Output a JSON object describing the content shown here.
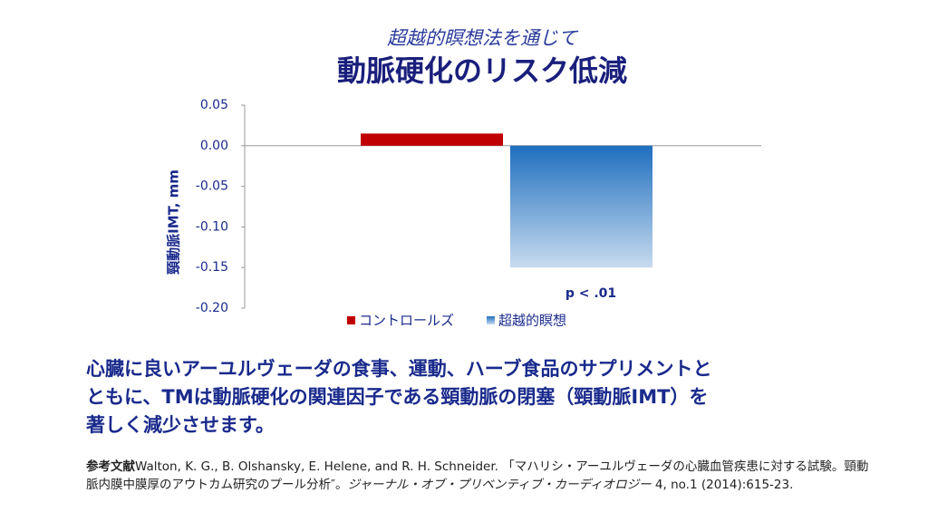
{
  "chart_data": {
    "type": "bar",
    "subtitle": "超越的瞑想法を通じて",
    "title": "動脈硬化のリスク低減",
    "y_label": "頸動脈IMT, mm",
    "categories": [
      null
    ],
    "series": [
      {
        "name": "コントロールズ",
        "color": "#c00000",
        "values": [
          0.015
        ]
      },
      {
        "name": "超越的瞑想",
        "color": "#1f6fbf",
        "values": [
          -0.15
        ]
      }
    ],
    "ylim": [
      -0.2,
      0.05
    ],
    "yticks": [
      0.05,
      {
        "value": 0,
        "label": "0.00"
      },
      -0.05,
      {
        "value": -0.1,
        "label": "-0.10"
      },
      -0.15,
      {
        "value": -0.2,
        "label": "-0.20"
      }
    ],
    "annotations": [
      "p < .01"
    ],
    "grid": false,
    "legend": "bottom"
  },
  "body": {
    "lines": [
      "心臓に良いアーユルヴェーダの食事、運動、ハーブ食品のサプリメントと",
      "ともに、TMは動脈硬化の関連因子である頸動脈の閉塞（頸動脈IMT）を",
      "著しく減少させます。"
    ]
  },
  "reference": {
    "label": "参考文献",
    "text": "Walton, K. G., B. Olshansky, E. Helene, and R. H. Schneider. 「マハリシ・アーユルヴェーダの心臓血管疾患に対する試験。頸動脈内膜中膜厚のアウトカム研究のプール分析″。",
    "journal": "ジャーナル・オブ・プリベンティブ・カーディオロジー",
    "citation": " 4, no.1 (2014):615-23."
  }
}
